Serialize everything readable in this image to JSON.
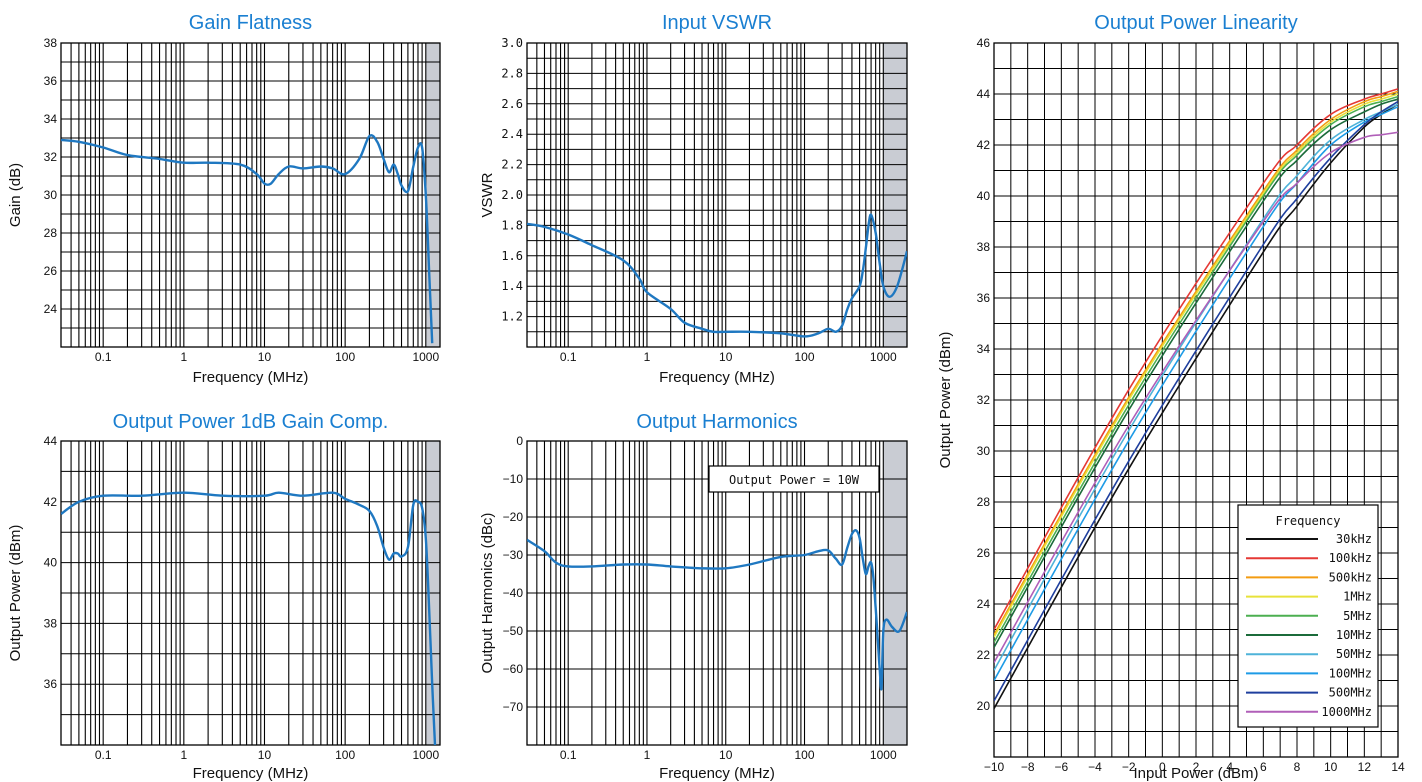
{
  "chart_data": [
    {
      "type": "line",
      "title": "Gain Flatness",
      "xlabel": "Frequency (MHz)",
      "ylabel": "Gain (dB)",
      "xscale": "log",
      "xlim": [
        0.03,
        1500
      ],
      "ylim": [
        22,
        38
      ],
      "xticks": [
        0.1,
        1,
        10,
        100,
        1000
      ],
      "xtick_labels": [
        "0.1",
        "1",
        "10",
        "100",
        "1000"
      ],
      "yticks": [
        24,
        26,
        28,
        30,
        32,
        34,
        36,
        38
      ],
      "ytick_labels": [
        "24",
        "26",
        "28",
        "30",
        "32",
        "34",
        "36",
        "38"
      ],
      "shaded_from": 1000,
      "grid": true,
      "line_color": "#1f78c1",
      "series": [
        {
          "x": [
            0.03,
            0.05,
            0.1,
            0.2,
            0.5,
            1,
            2,
            5,
            8,
            10,
            12,
            15,
            20,
            30,
            50,
            70,
            100,
            150,
            200,
            250,
            300,
            350,
            400,
            450,
            500,
            600,
            700,
            800,
            900,
            1000,
            1100,
            1200
          ],
          "y": [
            32.9,
            32.8,
            32.5,
            32.1,
            31.9,
            31.7,
            31.7,
            31.6,
            31.1,
            30.6,
            30.6,
            31.1,
            31.5,
            31.4,
            31.5,
            31.4,
            31.1,
            31.9,
            33.1,
            32.8,
            31.9,
            31.2,
            31.6,
            31.1,
            30.5,
            30.2,
            31.5,
            32.5,
            32.5,
            30.0,
            26.0,
            22.2
          ]
        }
      ]
    },
    {
      "type": "line",
      "title": "Input VSWR",
      "xlabel": "Frequency (MHz)",
      "ylabel": "VSWR",
      "xscale": "log",
      "xlim": [
        0.03,
        2000
      ],
      "ylim": [
        1.0,
        3.0
      ],
      "xticks": [
        0.1,
        1,
        10,
        100,
        1000
      ],
      "xtick_labels": [
        "0.1",
        "1",
        "10",
        "100",
        "1000"
      ],
      "yticks": [
        1.2,
        1.4,
        1.6,
        1.8,
        2.0,
        2.2,
        2.4,
        2.6,
        2.8,
        3.0
      ],
      "ytick_labels": [
        "1.2",
        "1.4",
        "1.6",
        "1.8",
        "2.0",
        "2.2",
        "2.4",
        "2.6",
        "2.8",
        "3.0"
      ],
      "shaded_from": 1000,
      "grid": true,
      "line_color": "#1f78c1",
      "series": [
        {
          "x": [
            0.03,
            0.05,
            0.1,
            0.2,
            0.5,
            0.8,
            1,
            2,
            3,
            5,
            7,
            10,
            20,
            50,
            100,
            150,
            200,
            250,
            300,
            350,
            400,
            500,
            550,
            600,
            650,
            700,
            800,
            900,
            1000,
            1200,
            1500,
            2000
          ],
          "y": [
            1.81,
            1.79,
            1.74,
            1.67,
            1.57,
            1.45,
            1.36,
            1.25,
            1.16,
            1.12,
            1.1,
            1.1,
            1.1,
            1.09,
            1.07,
            1.09,
            1.12,
            1.1,
            1.14,
            1.25,
            1.32,
            1.4,
            1.5,
            1.65,
            1.8,
            1.87,
            1.75,
            1.55,
            1.4,
            1.33,
            1.4,
            1.63
          ]
        }
      ]
    },
    {
      "type": "line",
      "title": "Output Power Linearity",
      "xlabel": "Input Power (dBm)",
      "ylabel": "Output Power (dBm)",
      "xlim": [
        -10,
        14
      ],
      "ylim": [
        18,
        46
      ],
      "xticks": [
        -10,
        -8,
        -6,
        -4,
        -2,
        0,
        2,
        4,
        6,
        8,
        10,
        12,
        14
      ],
      "xtick_labels": [
        "−10",
        "−8",
        "−6",
        "−4",
        "−2",
        "0",
        "2",
        "4",
        "6",
        "8",
        "10",
        "12",
        "14"
      ],
      "yticks": [
        20,
        22,
        24,
        26,
        28,
        30,
        32,
        34,
        36,
        38,
        40,
        42,
        44,
        46
      ],
      "ytick_labels": [
        "20",
        "22",
        "24",
        "26",
        "28",
        "30",
        "32",
        "34",
        "36",
        "38",
        "40",
        "42",
        "44",
        "46"
      ],
      "grid": true,
      "legend_title": "Frequency",
      "legend_position": "bottom-right",
      "series": [
        {
          "name": "30kHz",
          "color": "#111111",
          "x": [
            -10,
            -2,
            6,
            8,
            10,
            12,
            13,
            14
          ],
          "y": [
            19.9,
            29.3,
            37.8,
            39.6,
            41.3,
            42.7,
            43.2,
            43.6
          ]
        },
        {
          "name": "100kHz",
          "color": "#e53935",
          "x": [
            -10,
            -2,
            6,
            8,
            10,
            12,
            13,
            14
          ],
          "y": [
            23.0,
            32.4,
            40.5,
            42.0,
            43.2,
            43.8,
            44.0,
            44.2
          ]
        },
        {
          "name": "500kHz",
          "color": "#f39c12",
          "x": [
            -10,
            -2,
            6,
            8,
            10,
            12,
            13,
            14
          ],
          "y": [
            22.8,
            32.1,
            40.2,
            41.8,
            43.0,
            43.7,
            43.9,
            44.1
          ]
        },
        {
          "name": "1MHz",
          "color": "#e8e23a",
          "x": [
            -10,
            -2,
            6,
            8,
            10,
            12,
            13,
            14
          ],
          "y": [
            22.7,
            32.0,
            40.1,
            41.7,
            42.9,
            43.6,
            43.8,
            44.0
          ]
        },
        {
          "name": "5MHz",
          "color": "#4caf50",
          "x": [
            -10,
            -2,
            6,
            8,
            10,
            12,
            13,
            14
          ],
          "y": [
            22.5,
            31.8,
            40.0,
            41.6,
            42.8,
            43.5,
            43.7,
            43.9
          ]
        },
        {
          "name": "10MHz",
          "color": "#1b6b3a",
          "x": [
            -10,
            -2,
            6,
            8,
            10,
            12,
            13,
            14
          ],
          "y": [
            22.3,
            31.6,
            39.8,
            41.4,
            42.6,
            43.3,
            43.6,
            43.8
          ]
        },
        {
          "name": "50MHz",
          "color": "#4fb3d9",
          "x": [
            -10,
            -2,
            6,
            8,
            10,
            12,
            13,
            14
          ],
          "y": [
            21.4,
            30.8,
            39.1,
            40.8,
            42.2,
            43.0,
            43.3,
            43.6
          ]
        },
        {
          "name": "100MHz",
          "color": "#1e9be6",
          "x": [
            -10,
            -2,
            6,
            8,
            10,
            12,
            13,
            14
          ],
          "y": [
            21.0,
            30.4,
            38.8,
            40.5,
            42.0,
            42.9,
            43.2,
            43.5
          ]
        },
        {
          "name": "500MHz",
          "color": "#1f3f9e",
          "x": [
            -10,
            -2,
            6,
            8,
            10,
            12,
            13,
            14
          ],
          "y": [
            20.2,
            29.6,
            38.1,
            39.9,
            41.5,
            42.8,
            43.3,
            43.7
          ]
        },
        {
          "name": "1000MHz",
          "color": "#b05fb8",
          "x": [
            -10,
            -2,
            6,
            8,
            10,
            12,
            13,
            14
          ],
          "y": [
            21.7,
            31.0,
            39.0,
            40.5,
            41.7,
            42.3,
            42.4,
            42.5
          ]
        }
      ]
    },
    {
      "type": "line",
      "title": "Output Power 1dB Gain Comp.",
      "xlabel": "Frequency (MHz)",
      "ylabel": "Output Power (dBm)",
      "xscale": "log",
      "xlim": [
        0.03,
        1500
      ],
      "ylim": [
        34,
        44
      ],
      "xticks": [
        0.1,
        1,
        10,
        100,
        1000
      ],
      "xtick_labels": [
        "0.1",
        "1",
        "10",
        "100",
        "1000"
      ],
      "yticks": [
        36,
        38,
        40,
        42,
        44
      ],
      "ytick_labels": [
        "36",
        "38",
        "40",
        "42",
        "44"
      ],
      "shaded_from": 1000,
      "grid": true,
      "line_color": "#1f78c1",
      "series": [
        {
          "x": [
            0.03,
            0.05,
            0.1,
            0.3,
            1,
            3,
            10,
            15,
            30,
            70,
            100,
            150,
            200,
            250,
            300,
            350,
            400,
            450,
            500,
            600,
            700,
            800,
            900,
            1000,
            1100,
            1200,
            1300
          ],
          "y": [
            41.6,
            42.0,
            42.2,
            42.2,
            42.3,
            42.2,
            42.2,
            42.3,
            42.2,
            42.3,
            42.1,
            41.9,
            41.7,
            41.2,
            40.5,
            40.1,
            40.3,
            40.3,
            40.2,
            40.5,
            41.9,
            42.0,
            41.8,
            40.8,
            38.5,
            36.0,
            34.0
          ]
        }
      ]
    },
    {
      "type": "line",
      "title": "Output Harmonics",
      "xlabel": "Frequency (MHz)",
      "ylabel": "Output Harmonics (dBc)",
      "xscale": "log",
      "xlim": [
        0.03,
        2000
      ],
      "ylim": [
        -80,
        0
      ],
      "xticks": [
        0.1,
        1,
        10,
        100,
        1000
      ],
      "xtick_labels": [
        "0.1",
        "1",
        "10",
        "100",
        "1000"
      ],
      "yticks": [
        0,
        -10,
        -20,
        -30,
        -40,
        -50,
        -60,
        -70
      ],
      "ytick_labels": [
        "0",
        "−10",
        "−20",
        "−30",
        "−40",
        "−50",
        "−60",
        "−70"
      ],
      "shaded_from": 1000,
      "grid": true,
      "annotation": "Output Power = 10W",
      "line_color": "#1f78c1",
      "series": [
        {
          "x": [
            0.03,
            0.05,
            0.07,
            0.1,
            0.2,
            0.5,
            1,
            2,
            5,
            10,
            20,
            50,
            100,
            150,
            200,
            250,
            300,
            350,
            400,
            450,
            500,
            550,
            600,
            650,
            700,
            750,
            800,
            850,
            900,
            950,
            1000,
            1100,
            1300,
            1600,
            2000
          ],
          "y": [
            -26.0,
            -29.0,
            -32.0,
            -33.0,
            -33.0,
            -32.5,
            -32.5,
            -33.0,
            -33.5,
            -33.5,
            -32.5,
            -30.5,
            -30.0,
            -29.0,
            -28.8,
            -31.0,
            -32.5,
            -28.0,
            -24.5,
            -23.5,
            -25.5,
            -31.0,
            -35.0,
            -33.0,
            -32.0,
            -36.0,
            -44.0,
            -52.0,
            -60.0,
            -65.0,
            -50.0,
            -47.0,
            -49.0,
            -50.0,
            -45.0
          ]
        }
      ]
    }
  ]
}
